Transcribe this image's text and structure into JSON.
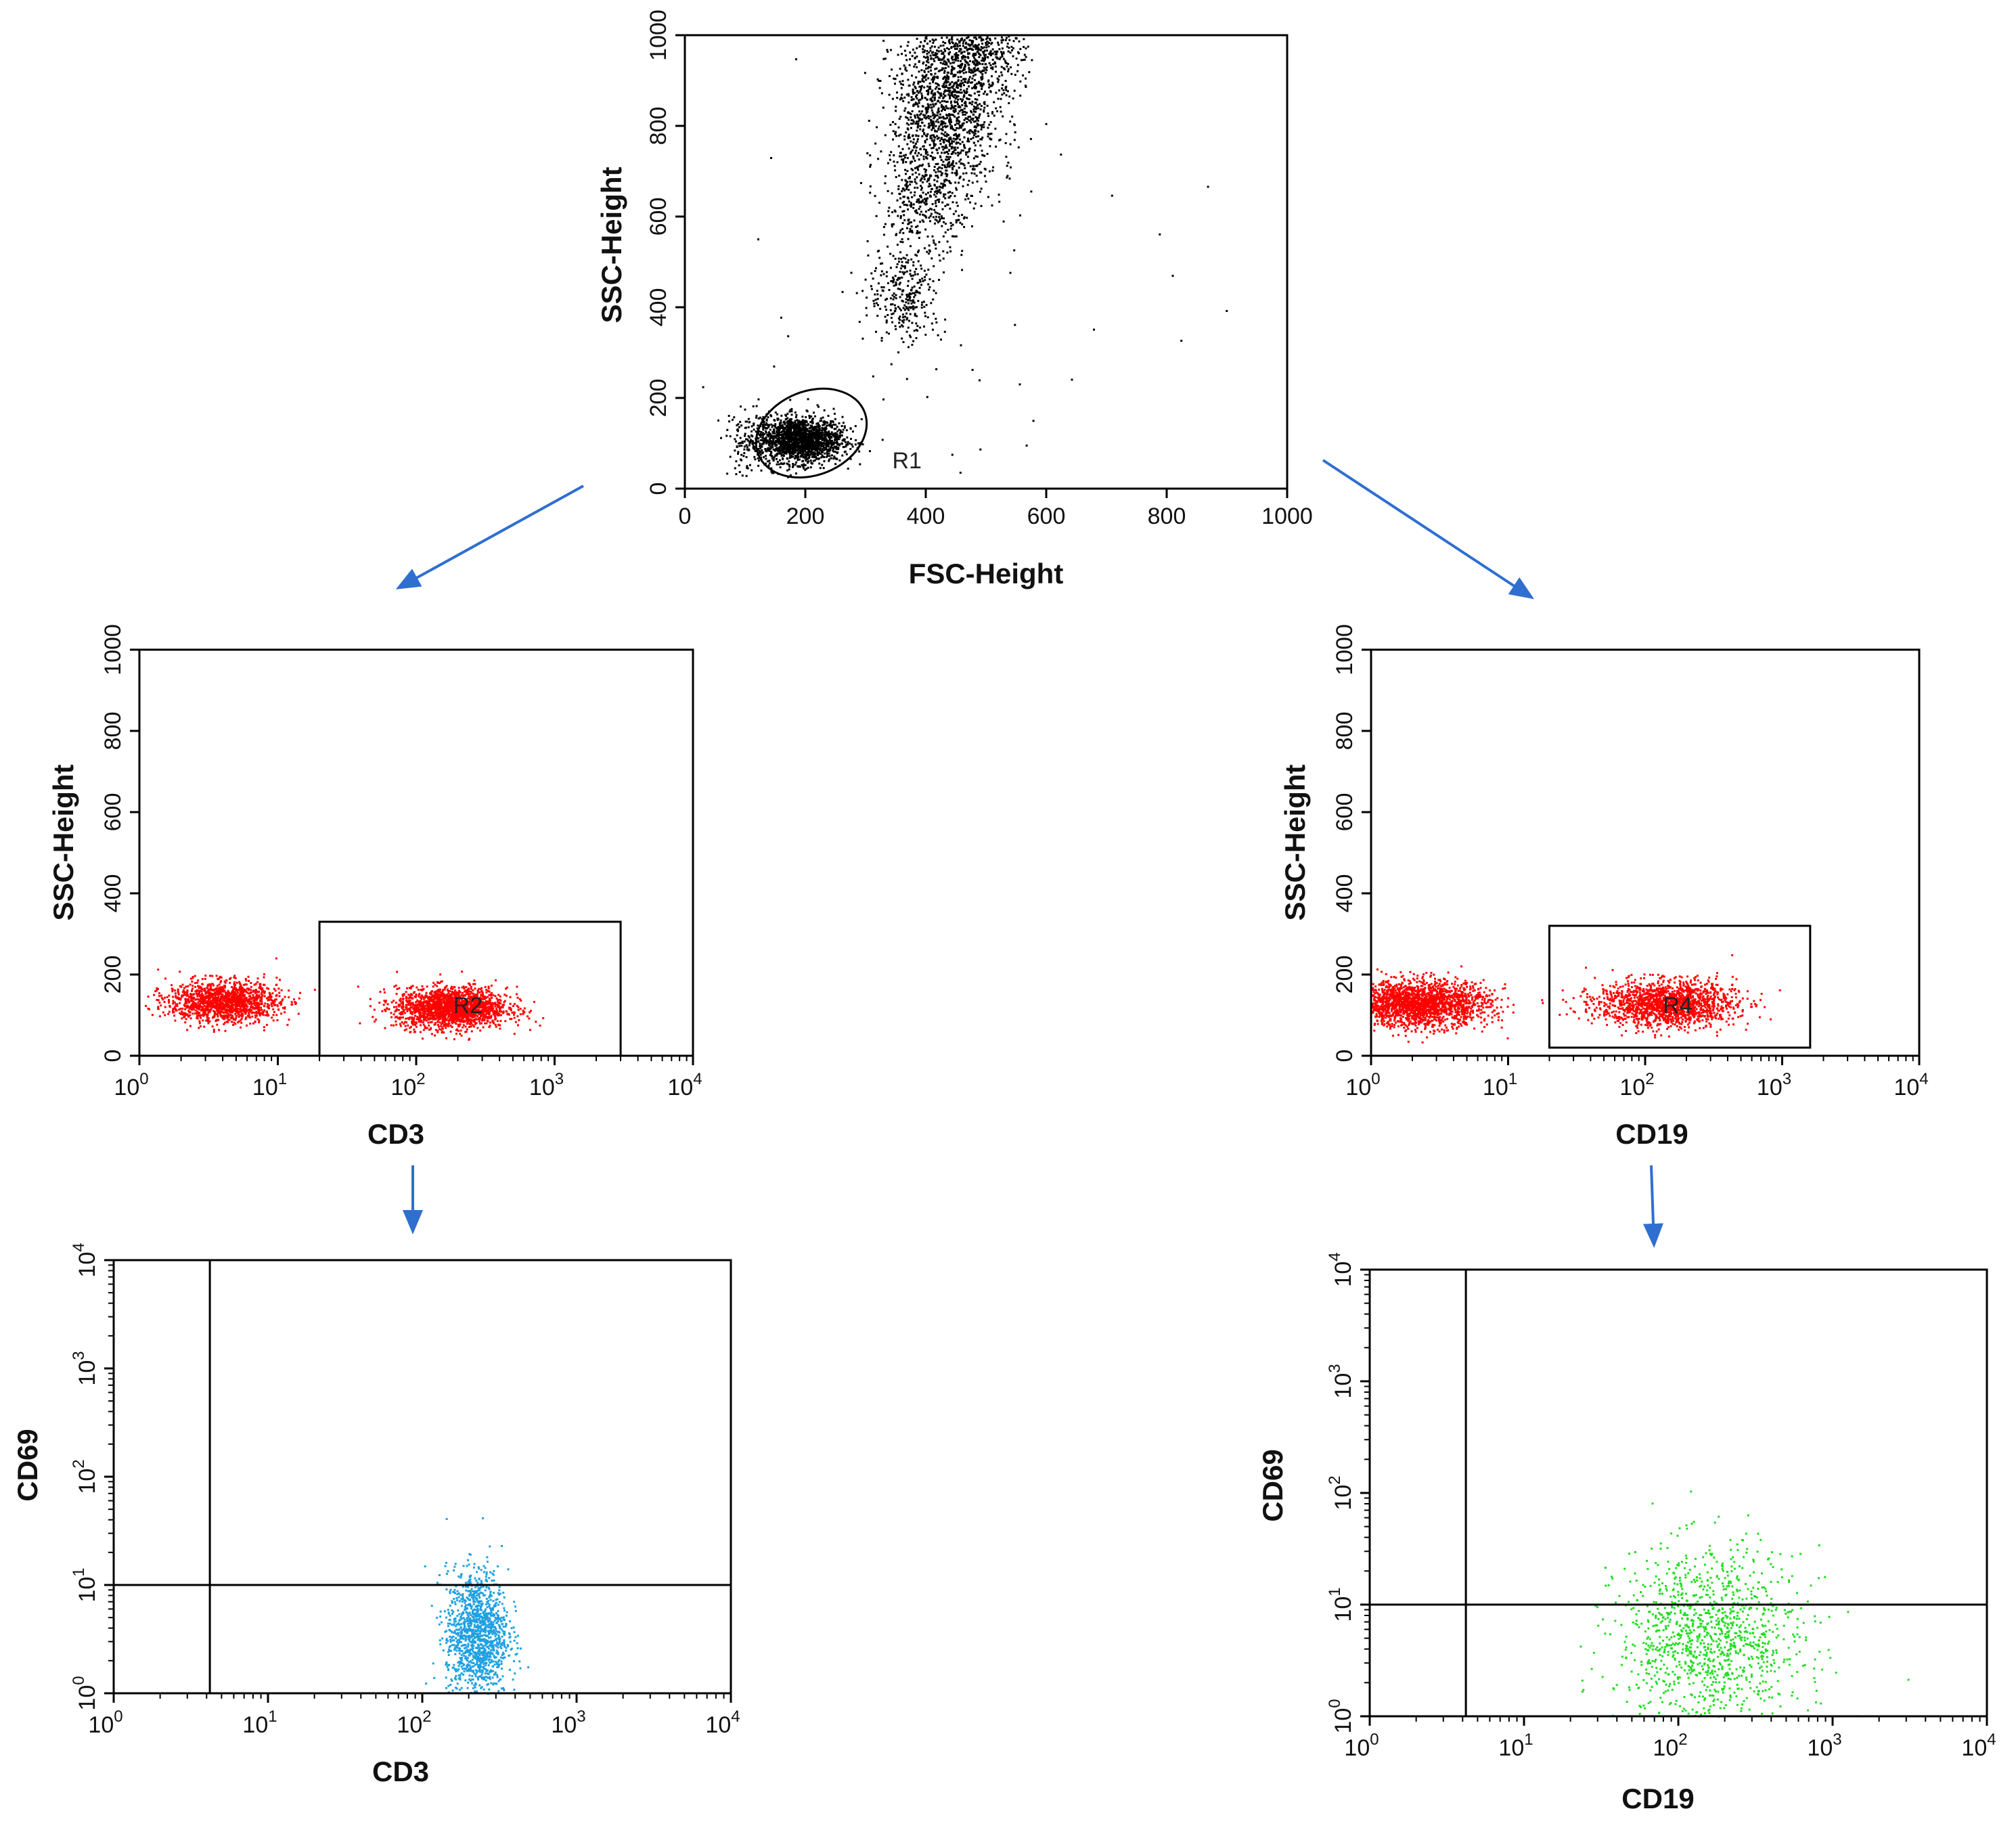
{
  "arrow_color": "#2e6fd0",
  "chart_data": [
    {
      "id": "scatter-scatter-plot",
      "type": "scatter",
      "xlabel": "FSC-Height",
      "ylabel": "SSC-Height",
      "xscale": "linear",
      "yscale": "linear",
      "xlim": [
        0,
        1000
      ],
      "ylim": [
        0,
        1000
      ],
      "xticks": [
        "0",
        "200",
        "400",
        "600",
        "800",
        "1000"
      ],
      "yticks": [
        "0",
        "200",
        "400",
        "600",
        "800",
        "1000"
      ],
      "point_color": "#000000",
      "gate": {
        "label": "R1",
        "shape": "ellipse",
        "x_range": [
          115,
          305
        ],
        "y_range": [
          30,
          215
        ]
      },
      "clusters": [
        {
          "x": 190,
          "y": 110,
          "sx": 35,
          "sy": 25,
          "n": 1700
        },
        {
          "x": 430,
          "y": 830,
          "sx": 45,
          "sy": 100,
          "n": 1400
        },
        {
          "x": 480,
          "y": 960,
          "sx": 40,
          "sy": 45,
          "n": 500
        },
        {
          "x": 365,
          "y": 430,
          "sx": 30,
          "sy": 55,
          "n": 300
        },
        {
          "x": 395,
          "y": 630,
          "sx": 35,
          "sy": 60,
          "n": 300
        },
        {
          "x": 110,
          "y": 100,
          "sx": 25,
          "sy": 35,
          "n": 120
        },
        {
          "x": 450,
          "y": 450,
          "sx": 250,
          "sy": 300,
          "n": 60
        }
      ]
    },
    {
      "id": "cd3-ssc-plot",
      "type": "scatter",
      "xlabel": "CD3",
      "ylabel": "SSC-Height",
      "xscale": "log",
      "yscale": "linear",
      "xlim": [
        1,
        10000
      ],
      "ylim": [
        0,
        1000
      ],
      "xticks": [
        1,
        10,
        100,
        1000,
        10000
      ],
      "yticks": [
        "0",
        "200",
        "400",
        "600",
        "800",
        "1000"
      ],
      "point_color": "#ff0000",
      "gate": {
        "label": "R2",
        "shape": "rect",
        "x_range": [
          20,
          3000
        ],
        "y_range": [
          0,
          330
        ]
      },
      "clusters": [
        {
          "logx": 0.6,
          "y": 135,
          "slx": 0.2,
          "sy": 25,
          "n": 1400
        },
        {
          "logx": 2.25,
          "y": 120,
          "slx": 0.2,
          "sy": 25,
          "n": 1900
        }
      ]
    },
    {
      "id": "cd19-ssc-plot",
      "type": "scatter",
      "xlabel": "CD19",
      "ylabel": "SSC-Height",
      "xscale": "log",
      "yscale": "linear",
      "xlim": [
        1,
        10000
      ],
      "ylim": [
        0,
        1000
      ],
      "xticks": [
        1,
        10,
        100,
        1000,
        10000
      ],
      "yticks": [
        "0",
        "200",
        "400",
        "600",
        "800",
        "1000"
      ],
      "point_color": "#ff0000",
      "gate": {
        "label": "R4",
        "shape": "rect",
        "x_range": [
          20,
          1600
        ],
        "y_range": [
          20,
          320
        ]
      },
      "clusters": [
        {
          "logx": 0.35,
          "y": 130,
          "slx": 0.25,
          "sy": 28,
          "n": 2000
        },
        {
          "logx": 2.15,
          "y": 130,
          "slx": 0.25,
          "sy": 28,
          "n": 1600
        }
      ]
    },
    {
      "id": "cd3-cd69-plot",
      "type": "scatter",
      "xlabel": "CD3",
      "ylabel": "CD69",
      "xscale": "log",
      "yscale": "log",
      "xlim": [
        1,
        10000
      ],
      "ylim": [
        1,
        10000
      ],
      "xticks": [
        1,
        10,
        100,
        1000,
        10000
      ],
      "yticks": [
        1,
        10,
        100,
        1000,
        10000
      ],
      "point_color": "#1ea0e0",
      "quadrant": {
        "x": 4.2,
        "y": 10
      },
      "clusters": [
        {
          "logx": 2.35,
          "logy": 0.55,
          "slx": 0.1,
          "sly": 0.3,
          "n": 1300
        }
      ]
    },
    {
      "id": "cd19-cd69-plot",
      "type": "scatter",
      "xlabel": "CD19",
      "ylabel": "CD69",
      "xscale": "log",
      "yscale": "log",
      "xlim": [
        1,
        10000
      ],
      "ylim": [
        1,
        10000
      ],
      "xticks": [
        1,
        10,
        100,
        1000,
        10000
      ],
      "yticks": [
        1,
        10,
        100,
        1000,
        10000
      ],
      "point_color": "#22dd22",
      "quadrant": {
        "x": 4.2,
        "y": 10
      },
      "clusters": [
        {
          "logx": 2.2,
          "logy": 0.7,
          "slx": 0.3,
          "sly": 0.4,
          "n": 1200
        }
      ]
    }
  ]
}
